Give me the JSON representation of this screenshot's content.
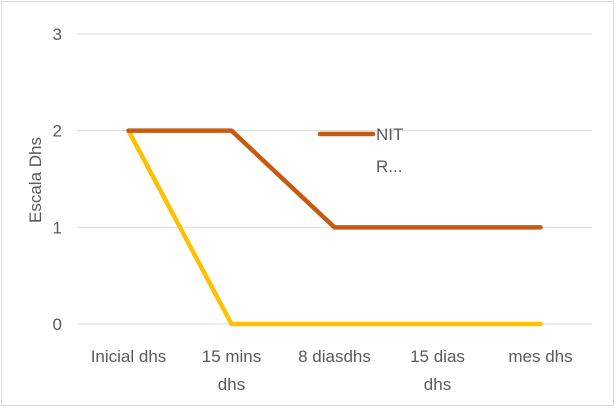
{
  "chart_data": {
    "type": "line",
    "title": "",
    "xlabel": "",
    "ylabel": "Escala Dhs",
    "ylim": [
      0,
      3
    ],
    "yticks": [
      0,
      1,
      2,
      3
    ],
    "grid": true,
    "legend_position": "top-right",
    "categories": [
      [
        "Inicial dhs"
      ],
      [
        "15 mins",
        "dhs"
      ],
      [
        "8 diasdhs"
      ],
      [
        "15 dias",
        "dhs"
      ],
      [
        "mes dhs"
      ]
    ],
    "series": [
      {
        "name": "NIT R...",
        "legend_lines": [
          "NIT",
          "R..."
        ],
        "color": "#c55a11",
        "values": [
          2,
          2,
          1,
          1,
          1
        ]
      },
      {
        "color": "#ffc000",
        "values": [
          2,
          0,
          0,
          0,
          0
        ]
      }
    ]
  }
}
